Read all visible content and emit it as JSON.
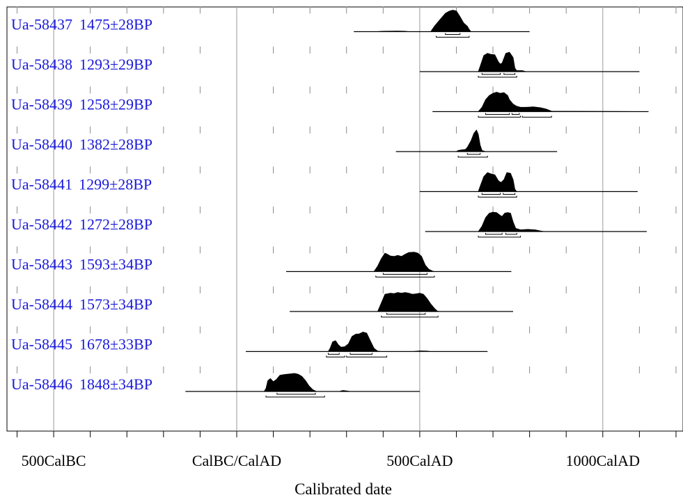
{
  "chart_data": {
    "type": "ridgeline",
    "title": "",
    "xlabel": "Calibrated date",
    "ylabel": "",
    "xlim": [
      -620,
      1220
    ],
    "x_ticks": [
      {
        "value": -500,
        "label": "500CalBC"
      },
      {
        "value": 0,
        "label": "CalBC/CalAD"
      },
      {
        "value": 500,
        "label": "500CalAD"
      },
      {
        "value": 1000,
        "label": "1000CalAD"
      }
    ],
    "grid": "vertical lines every 500 years, dashed ticks every 100 years",
    "colors": {
      "label": "#1a1adb",
      "fill": "#000000",
      "grid": "#999999"
    },
    "series": [
      {
        "lab_id": "Ua-58437",
        "age": "1475±28BP",
        "range": [
          320,
          800
        ],
        "pts": [
          [
            320,
            0
          ],
          [
            380,
            0
          ],
          [
            400,
            0.02
          ],
          [
            440,
            0.03
          ],
          [
            460,
            0.02
          ],
          [
            470,
            0
          ],
          [
            500,
            0
          ],
          [
            530,
            0
          ],
          [
            540,
            0.25
          ],
          [
            555,
            0.55
          ],
          [
            570,
            0.85
          ],
          [
            580,
            0.95
          ],
          [
            590,
            1
          ],
          [
            600,
            0.96
          ],
          [
            610,
            0.7
          ],
          [
            620,
            0.4
          ],
          [
            630,
            0.25
          ],
          [
            635,
            0.1
          ],
          [
            640,
            0
          ],
          [
            800,
            0
          ]
        ],
        "hpd": [
          [
            [
              570,
              610
            ]
          ],
          [
            [
              545,
              635
            ]
          ]
        ]
      },
      {
        "lab_id": "Ua-58438",
        "age": "1293±29BP",
        "range": [
          500,
          1100
        ],
        "pts": [
          [
            500,
            0
          ],
          [
            660,
            0
          ],
          [
            665,
            0.25
          ],
          [
            675,
            0.75
          ],
          [
            685,
            0.85
          ],
          [
            695,
            0.8
          ],
          [
            705,
            0.78
          ],
          [
            715,
            0.45
          ],
          [
            720,
            0.35
          ],
          [
            725,
            0.4
          ],
          [
            735,
            0.85
          ],
          [
            745,
            0.9
          ],
          [
            755,
            0.65
          ],
          [
            760,
            0.15
          ],
          [
            765,
            0.05
          ],
          [
            780,
            0.05
          ],
          [
            790,
            0
          ],
          [
            1100,
            0
          ]
        ],
        "hpd": [
          [
            [
              670,
              720
            ],
            [
              730,
              760
            ]
          ],
          [
            [
              660,
              765
            ]
          ]
        ]
      },
      {
        "lab_id": "Ua-58439",
        "age": "1258±29BP",
        "range": [
          535,
          1125
        ],
        "pts": [
          [
            535,
            0
          ],
          [
            660,
            0
          ],
          [
            670,
            0.2
          ],
          [
            680,
            0.55
          ],
          [
            690,
            0.75
          ],
          [
            700,
            0.85
          ],
          [
            710,
            0.9
          ],
          [
            720,
            0.85
          ],
          [
            730,
            0.88
          ],
          [
            740,
            0.75
          ],
          [
            745,
            0.55
          ],
          [
            755,
            0.35
          ],
          [
            765,
            0.25
          ],
          [
            775,
            0.2
          ],
          [
            790,
            0.2
          ],
          [
            810,
            0.22
          ],
          [
            830,
            0.18
          ],
          [
            845,
            0.12
          ],
          [
            860,
            0.02
          ],
          [
            1125,
            0
          ]
        ],
        "hpd": [
          [
            [
              680,
              745
            ],
            [
              752,
              772
            ]
          ],
          [
            [
              660,
              775
            ],
            [
              780,
              860
            ]
          ]
        ]
      },
      {
        "lab_id": "Ua-58440",
        "age": "1382±28BP",
        "range": [
          435,
          875
        ],
        "pts": [
          [
            435,
            0
          ],
          [
            600,
            0
          ],
          [
            605,
            0.05
          ],
          [
            615,
            0.08
          ],
          [
            625,
            0.1
          ],
          [
            630,
            0.2
          ],
          [
            640,
            0.5
          ],
          [
            648,
            0.85
          ],
          [
            655,
            1
          ],
          [
            660,
            0.8
          ],
          [
            665,
            0.3
          ],
          [
            670,
            0.05
          ],
          [
            680,
            0
          ],
          [
            875,
            0
          ]
        ],
        "hpd": [
          [
            [
              630,
              665
            ]
          ],
          [
            [
              605,
              685
            ]
          ]
        ]
      },
      {
        "lab_id": "Ua-58441",
        "age": "1299±28BP",
        "range": [
          500,
          1095
        ],
        "pts": [
          [
            500,
            0
          ],
          [
            660,
            0
          ],
          [
            665,
            0.25
          ],
          [
            675,
            0.7
          ],
          [
            685,
            0.88
          ],
          [
            695,
            0.82
          ],
          [
            705,
            0.78
          ],
          [
            715,
            0.5
          ],
          [
            722,
            0.42
          ],
          [
            730,
            0.55
          ],
          [
            738,
            0.88
          ],
          [
            748,
            0.85
          ],
          [
            755,
            0.55
          ],
          [
            760,
            0.1
          ],
          [
            765,
            0
          ],
          [
            1095,
            0
          ]
        ],
        "hpd": [
          [
            [
              670,
              720
            ],
            [
              728,
              760
            ]
          ],
          [
            [
              660,
              765
            ]
          ]
        ]
      },
      {
        "lab_id": "Ua-58442",
        "age": "1272±28BP",
        "range": [
          515,
          1120
        ],
        "pts": [
          [
            515,
            0
          ],
          [
            660,
            0
          ],
          [
            670,
            0.25
          ],
          [
            680,
            0.65
          ],
          [
            690,
            0.85
          ],
          [
            700,
            0.9
          ],
          [
            710,
            0.88
          ],
          [
            720,
            0.75
          ],
          [
            725,
            0.7
          ],
          [
            732,
            0.85
          ],
          [
            740,
            0.88
          ],
          [
            748,
            0.85
          ],
          [
            755,
            0.45
          ],
          [
            762,
            0.15
          ],
          [
            775,
            0.08
          ],
          [
            795,
            0.1
          ],
          [
            815,
            0.08
          ],
          [
            830,
            0.03
          ],
          [
            840,
            0
          ],
          [
            1120,
            0
          ]
        ],
        "hpd": [
          [
            [
              680,
              725
            ],
            [
              735,
              765
            ]
          ],
          [
            [
              660,
              775
            ]
          ]
        ]
      },
      {
        "lab_id": "Ua-58443",
        "age": "1593±34BP",
        "range": [
          135,
          750
        ],
        "pts": [
          [
            135,
            0
          ],
          [
            375,
            0
          ],
          [
            385,
            0.25
          ],
          [
            395,
            0.6
          ],
          [
            405,
            0.85
          ],
          [
            412,
            0.8
          ],
          [
            420,
            0.72
          ],
          [
            430,
            0.7
          ],
          [
            440,
            0.75
          ],
          [
            450,
            0.7
          ],
          [
            460,
            0.8
          ],
          [
            470,
            0.88
          ],
          [
            485,
            0.9
          ],
          [
            495,
            0.85
          ],
          [
            505,
            0.7
          ],
          [
            515,
            0.3
          ],
          [
            525,
            0.1
          ],
          [
            535,
            0.02
          ],
          [
            540,
            0
          ],
          [
            750,
            0
          ]
        ],
        "hpd": [
          [
            [
              400,
              520
            ]
          ],
          [
            [
              380,
              540
            ]
          ]
        ]
      },
      {
        "lab_id": "Ua-58444",
        "age": "1573±34BP",
        "range": [
          145,
          755
        ],
        "pts": [
          [
            145,
            0
          ],
          [
            385,
            0
          ],
          [
            395,
            0.4
          ],
          [
            405,
            0.8
          ],
          [
            420,
            0.85
          ],
          [
            430,
            0.83
          ],
          [
            440,
            0.88
          ],
          [
            450,
            0.85
          ],
          [
            460,
            0.88
          ],
          [
            470,
            0.85
          ],
          [
            480,
            0.8
          ],
          [
            490,
            0.82
          ],
          [
            500,
            0.85
          ],
          [
            510,
            0.8
          ],
          [
            520,
            0.6
          ],
          [
            530,
            0.35
          ],
          [
            540,
            0.15
          ],
          [
            548,
            0.02
          ],
          [
            555,
            0
          ],
          [
            755,
            0
          ]
        ],
        "hpd": [
          [
            [
              410,
              515
            ]
          ],
          [
            [
              395,
              550
            ]
          ]
        ]
      },
      {
        "lab_id": "Ua-58445",
        "age": "1678±33BP",
        "range": [
          25,
          685
        ],
        "pts": [
          [
            25,
            0
          ],
          [
            250,
            0
          ],
          [
            255,
            0.15
          ],
          [
            262,
            0.45
          ],
          [
            270,
            0.5
          ],
          [
            278,
            0.3
          ],
          [
            285,
            0.2
          ],
          [
            295,
            0.22
          ],
          [
            305,
            0.35
          ],
          [
            315,
            0.7
          ],
          [
            325,
            0.8
          ],
          [
            335,
            0.82
          ],
          [
            345,
            0.9
          ],
          [
            355,
            0.85
          ],
          [
            365,
            0.5
          ],
          [
            375,
            0.15
          ],
          [
            385,
            0.02
          ],
          [
            395,
            0
          ],
          [
            480,
            0
          ],
          [
            500,
            0.03
          ],
          [
            520,
            0.02
          ],
          [
            530,
            0
          ],
          [
            685,
            0
          ]
        ],
        "hpd": [
          [
            [
              250,
              280
            ],
            [
              310,
              370
            ]
          ],
          [
            [
              245,
              295
            ],
            [
              300,
              410
            ]
          ]
        ]
      },
      {
        "lab_id": "Ua-58446",
        "age": "1848±34BP",
        "range": [
          -140,
          500
        ],
        "pts": [
          [
            -140,
            0
          ],
          [
            75,
            0
          ],
          [
            80,
            0.15
          ],
          [
            85,
            0.5
          ],
          [
            92,
            0.6
          ],
          [
            100,
            0.45
          ],
          [
            108,
            0.55
          ],
          [
            118,
            0.75
          ],
          [
            128,
            0.78
          ],
          [
            138,
            0.8
          ],
          [
            148,
            0.82
          ],
          [
            158,
            0.84
          ],
          [
            168,
            0.8
          ],
          [
            178,
            0.7
          ],
          [
            188,
            0.5
          ],
          [
            198,
            0.25
          ],
          [
            208,
            0.08
          ],
          [
            218,
            0
          ],
          [
            280,
            0
          ],
          [
            290,
            0.05
          ],
          [
            300,
            0.03
          ],
          [
            310,
            0
          ],
          [
            500,
            0
          ]
        ],
        "hpd": [
          [
            [
              110,
              215
            ]
          ],
          [
            [
              80,
              240
            ]
          ]
        ]
      }
    ]
  }
}
